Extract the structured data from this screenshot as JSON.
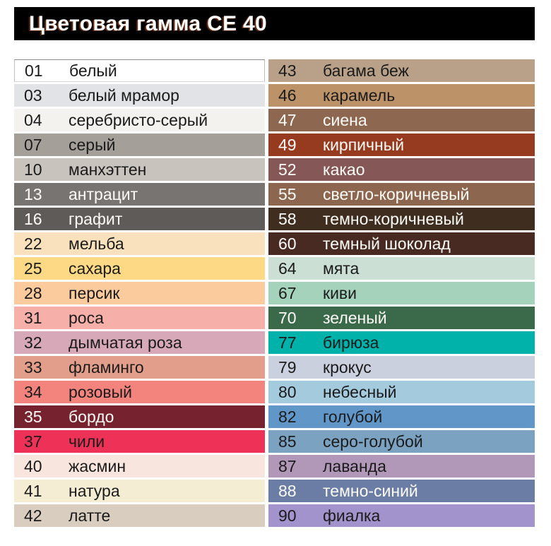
{
  "title": "Цветовая гамма CE 40",
  "styles": {
    "page_bg": "#ffffff",
    "title_bg": "#000000",
    "title_color": "#ffffff",
    "title_shadow_accent": "#ba4d1a",
    "dark_text": "#1b1b1b",
    "light_text": "#fdfcf8"
  },
  "chart_data": {
    "type": "table",
    "title": "Цветовая гамма CE 40",
    "columns": [
      {
        "position": "left",
        "rows": [
          {
            "code": "01",
            "name": "белый",
            "hex": "#ffffff",
            "text": "dark",
            "bordered": true
          },
          {
            "code": "03",
            "name": "белый мрамор",
            "hex": "#e2e3e6",
            "text": "dark"
          },
          {
            "code": "04",
            "name": "серебристо-серый",
            "hex": "#f3f2ee",
            "text": "dark"
          },
          {
            "code": "07",
            "name": "серый",
            "hex": "#a49f99",
            "text": "dark"
          },
          {
            "code": "10",
            "name": "манхэттен",
            "hex": "#c8c4bd",
            "text": "dark"
          },
          {
            "code": "13",
            "name": "антрацит",
            "hex": "#787472",
            "text": "light"
          },
          {
            "code": "16",
            "name": "графит",
            "hex": "#5f5b59",
            "text": "light"
          },
          {
            "code": "22",
            "name": "мельба",
            "hex": "#f8e1bc",
            "text": "dark"
          },
          {
            "code": "25",
            "name": "сахара",
            "hex": "#fdd986",
            "text": "dark"
          },
          {
            "code": "28",
            "name": "персик",
            "hex": "#fbcb9e",
            "text": "dark"
          },
          {
            "code": "31",
            "name": "роса",
            "hex": "#f6b0a9",
            "text": "dark"
          },
          {
            "code": "32",
            "name": "дымчатая роза",
            "hex": "#d7a9b8",
            "text": "dark"
          },
          {
            "code": "33",
            "name": "фламинго",
            "hex": "#e39e8b",
            "text": "dark"
          },
          {
            "code": "34",
            "name": "розовый",
            "hex": "#f3837d",
            "text": "dark"
          },
          {
            "code": "35",
            "name": "бордо",
            "hex": "#76222f",
            "text": "light"
          },
          {
            "code": "37",
            "name": "чили",
            "hex": "#ee3156",
            "text": "dark"
          },
          {
            "code": "40",
            "name": "жасмин",
            "hex": "#f8e6de",
            "text": "dark"
          },
          {
            "code": "41",
            "name": "натура",
            "hex": "#f5ecd4",
            "text": "dark"
          },
          {
            "code": "42",
            "name": "латте",
            "hex": "#d9cdc0",
            "text": "dark"
          }
        ]
      },
      {
        "position": "right",
        "rows": [
          {
            "code": "43",
            "name": "багама беж",
            "hex": "#b9a189",
            "text": "dark"
          },
          {
            "code": "46",
            "name": "карамель",
            "hex": "#bc9268",
            "text": "dark"
          },
          {
            "code": "47",
            "name": "сиена",
            "hex": "#8d6750",
            "text": "light"
          },
          {
            "code": "49",
            "name": "кирпичный",
            "hex": "#963a20",
            "text": "light"
          },
          {
            "code": "52",
            "name": "какао",
            "hex": "#855756",
            "text": "light"
          },
          {
            "code": "55",
            "name": "светло-коричневый",
            "hex": "#8c664e",
            "text": "light"
          },
          {
            "code": "58",
            "name": "темно-коричневый",
            "hex": "#3f2d1f",
            "text": "light"
          },
          {
            "code": "60",
            "name": "темный шоколад",
            "hex": "#482a23",
            "text": "light"
          },
          {
            "code": "64",
            "name": "мята",
            "hex": "#cbdfd5",
            "text": "dark"
          },
          {
            "code": "67",
            "name": "киви",
            "hex": "#a5d2bb",
            "text": "dark"
          },
          {
            "code": "70",
            "name": "зеленый",
            "hex": "#3a6a4a",
            "text": "light"
          },
          {
            "code": "77",
            "name": "бирюза",
            "hex": "#00b2a9",
            "text": "dark"
          },
          {
            "code": "79",
            "name": "крокус",
            "hex": "#cad0de",
            "text": "dark"
          },
          {
            "code": "80",
            "name": "небесный",
            "hex": "#a4cadd",
            "text": "dark"
          },
          {
            "code": "82",
            "name": "голубой",
            "hex": "#6196c8",
            "text": "dark"
          },
          {
            "code": "85",
            "name": "серо-голубой",
            "hex": "#7ba3c1",
            "text": "dark"
          },
          {
            "code": "87",
            "name": "лаванда",
            "hex": "#b298b8",
            "text": "dark"
          },
          {
            "code": "88",
            "name": "темно-синий",
            "hex": "#6b7da5",
            "text": "light"
          },
          {
            "code": "90",
            "name": "фиалка",
            "hex": "#a393cd",
            "text": "dark"
          }
        ]
      }
    ]
  }
}
